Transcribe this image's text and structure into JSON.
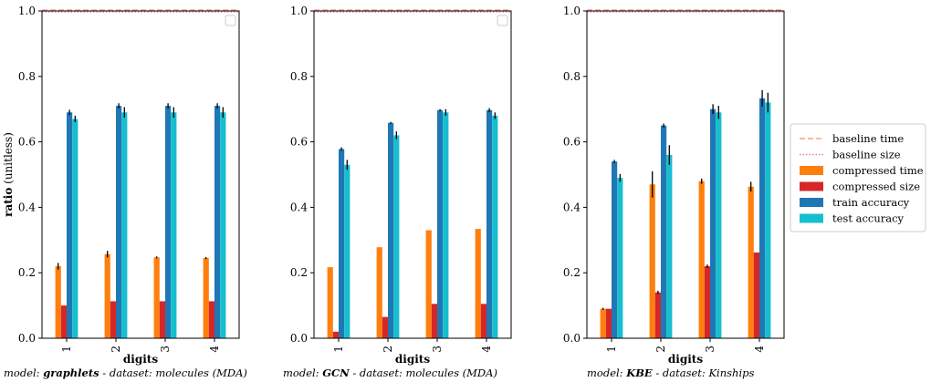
{
  "colors": {
    "baseline_time": "#f4a582",
    "baseline_size": "#e377c2",
    "compressed_time": "#ff7f0e",
    "compressed_size": "#d62728",
    "train_accuracy": "#1f77b4",
    "test_accuracy": "#17becf"
  },
  "legend": {
    "placement": "right",
    "entries": [
      {
        "label": "baseline time",
        "style": "dashed-line",
        "color_key": "baseline_time"
      },
      {
        "label": "baseline size",
        "style": "dotted-line",
        "color_key": "baseline_size"
      },
      {
        "label": "compressed time",
        "style": "patch",
        "color_key": "compressed_time"
      },
      {
        "label": "compressed size",
        "style": "patch",
        "color_key": "compressed_size"
      },
      {
        "label": "train accuracy",
        "style": "patch",
        "color_key": "train_accuracy"
      },
      {
        "label": "test accuracy",
        "style": "patch",
        "color_key": "test_accuracy"
      }
    ]
  },
  "chart_data": [
    {
      "type": "bar",
      "ylabel_bold": "ratio",
      "ylabel_rest": "(unitless)",
      "xlabel": "digits",
      "caption_prefix": "model: ",
      "model": "graphlets",
      "caption_suffix": " - dataset: molecules (MDA)",
      "categories": [
        "1",
        "2",
        "3",
        "4"
      ],
      "ylim": [
        0,
        1.0
      ],
      "yticks": [
        "0.0",
        "0.2",
        "0.4",
        "0.6",
        "0.8",
        "1.0"
      ],
      "grid": false,
      "baselines": {
        "baseline time": 1.0,
        "baseline size": 1.0
      },
      "series": [
        {
          "name": "compressed time",
          "color_key": "compressed_time",
          "values": [
            0.22,
            0.257,
            0.247,
            0.245
          ],
          "errors": [
            0.01,
            0.01,
            0.003,
            0.003
          ]
        },
        {
          "name": "compressed size",
          "color_key": "compressed_size",
          "values": [
            0.1,
            0.113,
            0.113,
            0.113
          ],
          "errors": [
            0,
            0,
            0,
            0
          ]
        },
        {
          "name": "train accuracy",
          "color_key": "train_accuracy",
          "values": [
            0.69,
            0.71,
            0.71,
            0.71
          ],
          "errors": [
            0.008,
            0.008,
            0.008,
            0.008
          ]
        },
        {
          "name": "test accuracy",
          "color_key": "test_accuracy",
          "values": [
            0.67,
            0.69,
            0.69,
            0.69
          ],
          "errors": [
            0.01,
            0.016,
            0.016,
            0.016
          ]
        }
      ]
    },
    {
      "type": "bar",
      "ylabel_bold": "",
      "ylabel_rest": "",
      "xlabel": "digits",
      "caption_prefix": "model: ",
      "model": "GCN",
      "caption_suffix": " - dataset: molecules (MDA)",
      "categories": [
        "1",
        "2",
        "3",
        "4"
      ],
      "ylim": [
        0,
        1.0
      ],
      "yticks": [
        "0.0",
        "0.2",
        "0.4",
        "0.6",
        "0.8",
        "1.0"
      ],
      "grid": false,
      "baselines": {
        "baseline time": 1.0,
        "baseline size": 1.0
      },
      "series": [
        {
          "name": "compressed time",
          "color_key": "compressed_time",
          "values": [
            0.217,
            0.278,
            0.33,
            0.334
          ],
          "errors": [
            0,
            0,
            0,
            0
          ]
        },
        {
          "name": "compressed size",
          "color_key": "compressed_size",
          "values": [
            0.02,
            0.065,
            0.105,
            0.105
          ],
          "errors": [
            0,
            0,
            0,
            0
          ]
        },
        {
          "name": "train accuracy",
          "color_key": "train_accuracy",
          "values": [
            0.578,
            0.658,
            0.697,
            0.697
          ],
          "errors": [
            0.005,
            0.003,
            0.003,
            0.006
          ]
        },
        {
          "name": "test accuracy",
          "color_key": "test_accuracy",
          "values": [
            0.53,
            0.62,
            0.69,
            0.68
          ],
          "errors": [
            0.015,
            0.012,
            0.01,
            0.01
          ]
        }
      ]
    },
    {
      "type": "bar",
      "ylabel_bold": "",
      "ylabel_rest": "",
      "xlabel": "digits",
      "caption_prefix": "model: ",
      "model": "KBE",
      "caption_suffix": " - dataset: Kinships",
      "categories": [
        "1",
        "2",
        "3",
        "4"
      ],
      "ylim": [
        0,
        1.0
      ],
      "yticks": [
        "0.0",
        "0.2",
        "0.4",
        "0.6",
        "0.8",
        "1.0"
      ],
      "grid": false,
      "baselines": {
        "baseline time": 1.0,
        "baseline size": 1.0
      },
      "series": [
        {
          "name": "compressed time",
          "color_key": "compressed_time",
          "values": [
            0.09,
            0.47,
            0.48,
            0.463
          ],
          "errors": [
            0.003,
            0.04,
            0.008,
            0.015
          ]
        },
        {
          "name": "compressed size",
          "color_key": "compressed_size",
          "values": [
            0.09,
            0.14,
            0.22,
            0.262
          ],
          "errors": [
            0,
            0.005,
            0.005,
            0
          ]
        },
        {
          "name": "train accuracy",
          "color_key": "train_accuracy",
          "values": [
            0.54,
            0.65,
            0.7,
            0.733
          ],
          "errors": [
            0.005,
            0.006,
            0.015,
            0.025
          ]
        },
        {
          "name": "test accuracy",
          "color_key": "test_accuracy",
          "values": [
            0.49,
            0.56,
            0.69,
            0.72
          ],
          "errors": [
            0.012,
            0.03,
            0.02,
            0.03
          ]
        }
      ]
    }
  ]
}
